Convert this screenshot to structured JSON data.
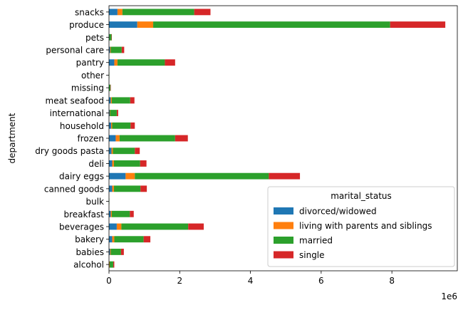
{
  "chart_data": {
    "type": "bar",
    "orientation": "horizontal",
    "stacked": true,
    "title": "",
    "xlabel": "",
    "ylabel": "department",
    "x_offset_label": "1e6",
    "x_scale": 1000000,
    "xlim": [
      0,
      9.85
    ],
    "x_ticks": [
      0,
      2,
      4,
      6,
      8
    ],
    "grid": false,
    "legend": {
      "title": "marital_status",
      "placement": "lower-right"
    },
    "categories": [
      "alcohol",
      "babies",
      "bakery",
      "beverages",
      "breakfast",
      "bulk",
      "canned goods",
      "dairy eggs",
      "deli",
      "dry goods pasta",
      "frozen",
      "household",
      "international",
      "meat seafood",
      "missing",
      "other",
      "pantry",
      "personal care",
      "pets",
      "produce",
      "snacks"
    ],
    "series": [
      {
        "name": "divorced/widowed",
        "color": "#1f77b4",
        "values": [
          0.01,
          0.03,
          0.09,
          0.22,
          0.05,
          0.0,
          0.09,
          0.47,
          0.09,
          0.07,
          0.19,
          0.06,
          0.02,
          0.05,
          0.0,
          0.0,
          0.15,
          0.03,
          0.01,
          0.8,
          0.24
        ]
      },
      {
        "name": "living with parents and siblings",
        "color": "#ff7f0e",
        "values": [
          0.01,
          0.02,
          0.06,
          0.13,
          0.03,
          0.0,
          0.05,
          0.26,
          0.05,
          0.04,
          0.11,
          0.03,
          0.01,
          0.03,
          0.0,
          0.0,
          0.09,
          0.02,
          0.0,
          0.45,
          0.14
        ]
      },
      {
        "name": "married",
        "color": "#2ca02c",
        "values": [
          0.1,
          0.29,
          0.83,
          1.89,
          0.51,
          0.01,
          0.75,
          3.79,
          0.74,
          0.62,
          1.57,
          0.52,
          0.19,
          0.52,
          0.04,
          0.01,
          1.34,
          0.31,
          0.06,
          6.7,
          2.03
        ]
      },
      {
        "name": "single",
        "color": "#d62728",
        "values": [
          0.03,
          0.08,
          0.19,
          0.44,
          0.11,
          0.0,
          0.18,
          0.88,
          0.18,
          0.14,
          0.36,
          0.12,
          0.04,
          0.12,
          0.01,
          0.0,
          0.29,
          0.07,
          0.01,
          1.56,
          0.46
        ]
      }
    ]
  }
}
